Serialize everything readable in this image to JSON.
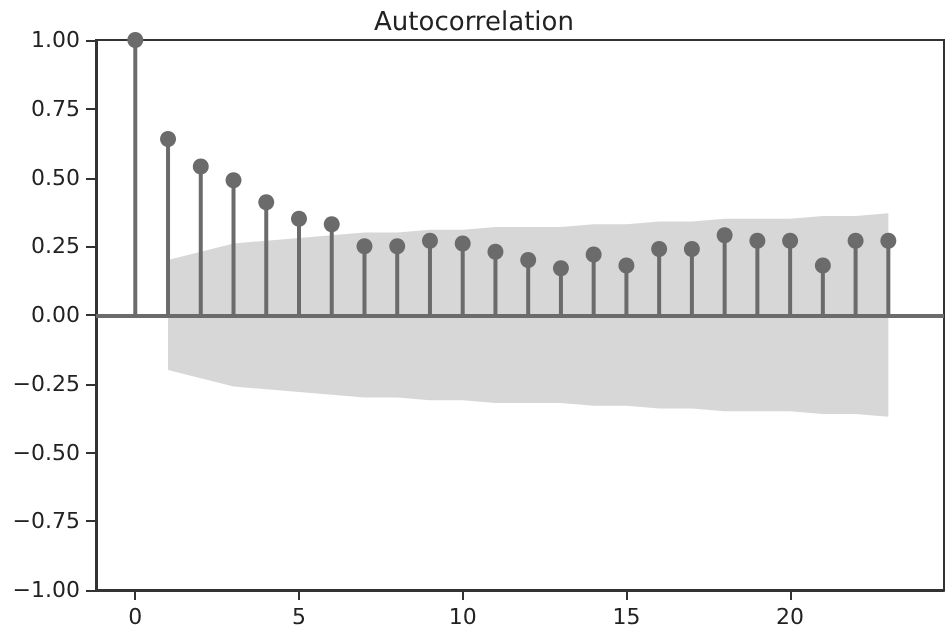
{
  "chart_data": {
    "type": "lollipop",
    "title": "Autocorrelation",
    "x": [
      0,
      1,
      2,
      3,
      4,
      5,
      6,
      7,
      8,
      9,
      10,
      11,
      12,
      13,
      14,
      15,
      16,
      17,
      18,
      19,
      20,
      21,
      22,
      23
    ],
    "series": [
      {
        "color": "#6b6b6b",
        "values": [
          1.0,
          0.64,
          0.54,
          0.49,
          0.41,
          0.35,
          0.33,
          0.25,
          0.25,
          0.27,
          0.26,
          0.23,
          0.2,
          0.17,
          0.22,
          0.18,
          0.24,
          0.24,
          0.29,
          0.27,
          0.27,
          0.18,
          0.27,
          0.27
        ],
        "lower": [
          null,
          -0.2,
          -0.23,
          -0.26,
          -0.27,
          -0.28,
          -0.29,
          -0.3,
          -0.3,
          -0.31,
          -0.31,
          -0.32,
          -0.32,
          -0.32,
          -0.33,
          -0.33,
          -0.34,
          -0.34,
          -0.35,
          -0.35,
          -0.35,
          -0.36,
          -0.36,
          -0.37
        ],
        "upper": [
          null,
          0.2,
          0.23,
          0.26,
          0.27,
          0.28,
          0.29,
          0.3,
          0.3,
          0.31,
          0.31,
          0.32,
          0.32,
          0.32,
          0.33,
          0.33,
          0.34,
          0.34,
          0.35,
          0.35,
          0.35,
          0.36,
          0.36,
          0.37
        ]
      }
    ],
    "xlim": [
      -1.2,
      24.7
    ],
    "xticks": [
      0,
      5,
      10,
      15,
      20
    ],
    "ylim": [
      -1,
      1
    ],
    "yticks": [
      {
        "value": -1,
        "label": "−1.00"
      },
      {
        "value": -0.75,
        "label": "−0.75"
      },
      {
        "value": -0.5,
        "label": "−0.50"
      },
      {
        "value": -0.25,
        "label": "−0.25"
      },
      {
        "value": 0,
        "label": "0.00"
      },
      {
        "value": 0.25,
        "label": "0.25"
      },
      {
        "value": 0.5,
        "label": "0.50"
      },
      {
        "value": 0.75,
        "label": "0.75"
      },
      {
        "value": 1,
        "label": "1.00"
      }
    ],
    "ref_lines": [
      {
        "axis": "y",
        "value": 0,
        "color": "#6b6b6b"
      }
    ],
    "marker": "circle",
    "grid": false
  }
}
